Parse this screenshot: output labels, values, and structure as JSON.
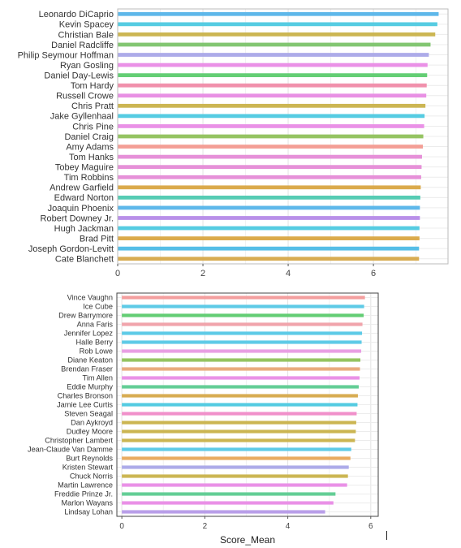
{
  "chart_data": [
    {
      "type": "bar",
      "orientation": "horizontal",
      "xlabel": "",
      "ylabel": "",
      "xlim": [
        0,
        7.75
      ],
      "xticks": [
        0,
        2,
        4,
        6
      ],
      "grid": true,
      "legend": "none",
      "categories": [
        "Leonardo DiCaprio",
        "Kevin Spacey",
        "Christian Bale",
        "Daniel Radcliffe",
        "Philip Seymour Hoffman",
        "Ryan Gosling",
        "Daniel Day-Lewis",
        "Tom Hardy",
        "Russell Crowe",
        "Chris Pratt",
        "Jake Gyllenhaal",
        "Chris Pine",
        "Daniel Craig",
        "Amy Adams",
        "Tom Hanks",
        "Tobey Maguire",
        "Tim Robbins",
        "Andrew Garfield",
        "Edward Norton",
        "Joaquin Phoenix",
        "Robert Downey Jr.",
        "Hugh Jackman",
        "Brad Pitt",
        "Joseph Gordon-Levitt",
        "Cate Blanchett"
      ],
      "values": [
        7.53,
        7.5,
        7.45,
        7.34,
        7.3,
        7.27,
        7.26,
        7.25,
        7.24,
        7.22,
        7.2,
        7.19,
        7.17,
        7.16,
        7.14,
        7.13,
        7.12,
        7.11,
        7.1,
        7.09,
        7.09,
        7.08,
        7.08,
        7.07,
        7.07
      ],
      "colors": [
        "#56B4E9",
        "#4DC9E0",
        "#C9B24A",
        "#7CC36A",
        "#A9A6E8",
        "#E98BE6",
        "#5CCB6E",
        "#F08BA8",
        "#E88BE3",
        "#C9B24A",
        "#4DC9E0",
        "#E98BE6",
        "#8FC15A",
        "#F39A90",
        "#E58AD6",
        "#E58AD6",
        "#E58AD6",
        "#D9A642",
        "#4DC9B0",
        "#56B4E9",
        "#B58AE8",
        "#4DC9E0",
        "#D9A642",
        "#4DBBE6",
        "#D6A94A"
      ]
    },
    {
      "type": "bar",
      "orientation": "horizontal",
      "xlabel": "Score_Mean",
      "ylabel": "",
      "xlim": [
        -0.12,
        6.18
      ],
      "xticks": [
        0,
        2,
        4,
        6
      ],
      "grid": true,
      "legend": "none",
      "categories": [
        "Vince Vaughn",
        "Ice Cube",
        "Drew Barrymore",
        "Anna Faris",
        "Jennifer Lopez",
        "Halle Berry",
        "Rob Lowe",
        "Diane Keaton",
        "Brendan Fraser",
        "Tim Allen",
        "Eddie Murphy",
        "Charles Bronson",
        "Jamie Lee Curtis",
        "Steven Seagal",
        "Dan Aykroyd",
        "Dudley Moore",
        "Christopher Lambert",
        "Jean-Claude Van Damme",
        "Burt Reynolds",
        "Kristen Stewart",
        "Chuck Norris",
        "Martin Lawrence",
        "Freddie Prinze Jr.",
        "Marlon Wayans",
        "Lindsay Lohan"
      ],
      "values": [
        5.86,
        5.84,
        5.83,
        5.8,
        5.79,
        5.78,
        5.77,
        5.75,
        5.74,
        5.73,
        5.71,
        5.69,
        5.68,
        5.66,
        5.65,
        5.64,
        5.62,
        5.53,
        5.51,
        5.47,
        5.45,
        5.43,
        5.15,
        5.1,
        4.9
      ],
      "colors": [
        "#F39A9A",
        "#56C8E6",
        "#5CCB6E",
        "#F0A0A8",
        "#56C8E6",
        "#56C8E6",
        "#E89AE3",
        "#8FC15A",
        "#E8A878",
        "#E98BE6",
        "#5CCB90",
        "#D6A94A",
        "#4DC9E0",
        "#F08BC8",
        "#C9B24A",
        "#C9B24A",
        "#C9B24A",
        "#56C8E6",
        "#E8A85A",
        "#A9A6E8",
        "#C9B24A",
        "#E98BE6",
        "#5CCB90",
        "#E98BE6",
        "#B59AE8"
      ]
    }
  ]
}
